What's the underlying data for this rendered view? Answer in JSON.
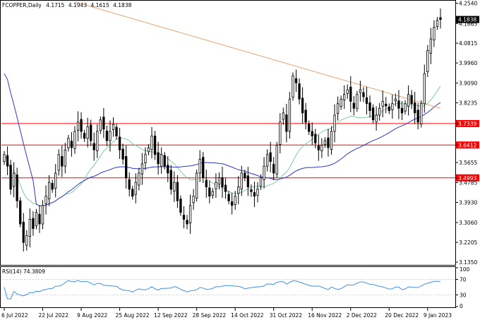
{
  "chart_data": [
    {
      "type": "candlestick",
      "symbol": "FCOPPER,Daily",
      "ohlc_header": [
        "4.1715",
        "4.1943",
        "4.1615",
        "4.1838"
      ],
      "last_price_label": "4.1838",
      "y_ticks": [
        "4.2540",
        "4.1665",
        "4.0815",
        "3.9960",
        "3.9090",
        "3.8235",
        "3.7339",
        "3.6412",
        "3.5655",
        "3.4993",
        "3.4785",
        "3.3930",
        "3.3060",
        "3.2205",
        "3.1350"
      ],
      "y_tick_values": [
        4.254,
        4.1665,
        4.0815,
        3.996,
        3.909,
        3.8235,
        3.7339,
        3.6412,
        3.5655,
        3.4993,
        3.4785,
        3.393,
        3.306,
        3.2205,
        3.135
      ],
      "ylim": [
        3.123,
        4.265
      ],
      "horizontal_lines": [
        {
          "value": 3.7339,
          "label": "3.7339",
          "color": "#ff0000"
        },
        {
          "value": 3.6412,
          "label": "3.6412",
          "color": "#ff0000"
        },
        {
          "value": 3.4993,
          "label": "3.4993",
          "color": "#ff0000"
        }
      ],
      "x_ticks": [
        "6 Jul 2022",
        "22 Jul 2022",
        "9 Aug 2022",
        "25 Aug 2022",
        "12 Sep 2022",
        "28 Sep 2022",
        "14 Oct 2022",
        "31 Oct 2022",
        "16 Nov 2022",
        "2 Dec 2022",
        "20 Dec 2022",
        "9 Jan 2023"
      ],
      "x_tick_bar_index": [
        0,
        12,
        24,
        36,
        48,
        60,
        72,
        84,
        96,
        108,
        120,
        132
      ],
      "closes": [
        3.6,
        3.55,
        3.45,
        3.52,
        3.4,
        3.3,
        3.22,
        3.25,
        3.32,
        3.28,
        3.35,
        3.3,
        3.38,
        3.42,
        3.48,
        3.45,
        3.52,
        3.6,
        3.55,
        3.62,
        3.67,
        3.63,
        3.7,
        3.74,
        3.7,
        3.67,
        3.72,
        3.66,
        3.62,
        3.7,
        3.75,
        3.71,
        3.66,
        3.7,
        3.73,
        3.68,
        3.62,
        3.58,
        3.5,
        3.45,
        3.42,
        3.48,
        3.52,
        3.56,
        3.6,
        3.63,
        3.68,
        3.6,
        3.56,
        3.6,
        3.55,
        3.52,
        3.45,
        3.48,
        3.4,
        3.35,
        3.32,
        3.3,
        3.38,
        3.42,
        3.52,
        3.58,
        3.5,
        3.46,
        3.42,
        3.44,
        3.48,
        3.5,
        3.46,
        3.44,
        3.4,
        3.38,
        3.42,
        3.46,
        3.52,
        3.5,
        3.46,
        3.44,
        3.42,
        3.45,
        3.5,
        3.55,
        3.6,
        3.57,
        3.52,
        3.64,
        3.74,
        3.78,
        3.7,
        3.84,
        3.94,
        3.91,
        3.84,
        3.78,
        3.74,
        3.7,
        3.68,
        3.65,
        3.62,
        3.64,
        3.66,
        3.63,
        3.7,
        3.77,
        3.82,
        3.84,
        3.86,
        3.88,
        3.83,
        3.8,
        3.86,
        3.88,
        3.85,
        3.82,
        3.79,
        3.75,
        3.77,
        3.8,
        3.83,
        3.81,
        3.79,
        3.82,
        3.84,
        3.8,
        3.78,
        3.82,
        3.86,
        3.82,
        3.78,
        3.74,
        3.82,
        3.95,
        4.05,
        4.1,
        4.15,
        4.18,
        4.1838
      ],
      "moving_averages": [
        {
          "period": 20,
          "color": "#7ecf9a"
        },
        {
          "period": 50,
          "color": "#2e37c9"
        },
        {
          "period": 200,
          "color": "#e6a372"
        }
      ],
      "rsi": {
        "label": "RSI(14) 74.3809",
        "levels": [
          "100",
          "70",
          "30",
          "0"
        ],
        "level_values": [
          100,
          70,
          30,
          0
        ],
        "color": "#3f90e8"
      }
    }
  ]
}
